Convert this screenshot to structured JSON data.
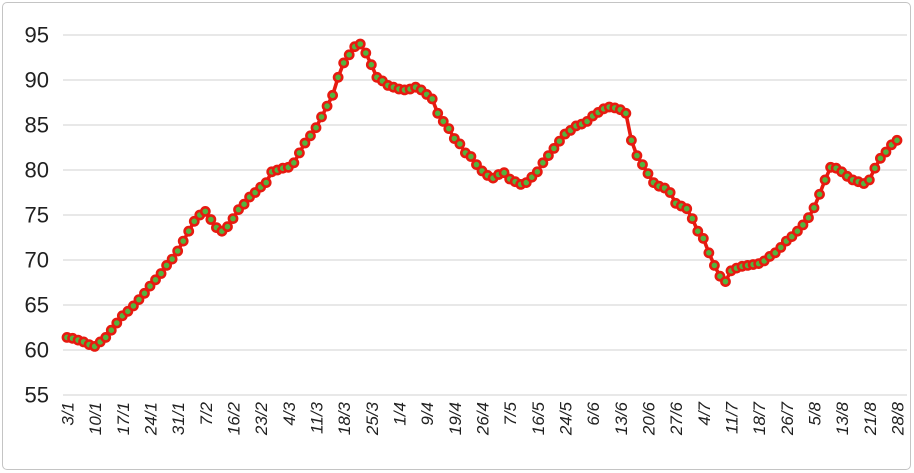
{
  "figure": {
    "background_color": "#ffffff",
    "border_color": "#c4c4c4"
  },
  "chart_data": {
    "type": "line",
    "title": "",
    "xlabel": "",
    "ylabel": "",
    "legend": "none",
    "grid": "horizontal",
    "ylim": [
      55,
      95
    ],
    "y_ticks": [
      55,
      60,
      65,
      70,
      75,
      80,
      85,
      90,
      95
    ],
    "x_tick_labels": [
      "3/1",
      "10/1",
      "17/1",
      "24/1",
      "31/1",
      "7/2",
      "16/2",
      "23/2",
      "4/3",
      "11/3",
      "18/3",
      "25/3",
      "1/4",
      "9/4",
      "19/4",
      "26/4",
      "7/5",
      "16/5",
      "24/5",
      "6/6",
      "13/6",
      "20/6",
      "27/6",
      "4/7",
      "11/7",
      "18/7",
      "26/7",
      "5/8",
      "13/8",
      "21/8",
      "28/8"
    ],
    "x_label_interval": 5,
    "values": [
      61.4,
      61.3,
      61.1,
      60.9,
      60.6,
      60.4,
      60.9,
      61.4,
      62.2,
      63.0,
      63.8,
      64.3,
      64.9,
      65.6,
      66.3,
      67.1,
      67.8,
      68.5,
      69.4,
      70.1,
      71.0,
      72.1,
      73.2,
      74.3,
      75.0,
      75.4,
      74.5,
      73.6,
      73.2,
      73.7,
      74.6,
      75.6,
      76.2,
      77.0,
      77.5,
      78.1,
      78.6,
      79.8,
      80.0,
      80.2,
      80.3,
      80.8,
      81.9,
      83.0,
      83.8,
      84.7,
      85.9,
      87.1,
      88.3,
      90.3,
      91.9,
      92.8,
      93.7,
      94.0,
      93.0,
      91.7,
      90.3,
      89.9,
      89.4,
      89.2,
      89.0,
      88.9,
      89.0,
      89.2,
      88.9,
      88.4,
      87.9,
      86.3,
      85.4,
      84.6,
      83.5,
      82.9,
      81.9,
      81.5,
      80.6,
      79.9,
      79.4,
      79.1,
      79.5,
      79.7,
      79.0,
      78.7,
      78.4,
      78.6,
      79.2,
      79.8,
      80.8,
      81.6,
      82.4,
      83.2,
      84.0,
      84.4,
      84.9,
      85.1,
      85.4,
      86.0,
      86.4,
      86.8,
      87.0,
      86.9,
      86.7,
      86.3,
      83.3,
      81.6,
      80.6,
      79.6,
      78.6,
      78.2,
      78.0,
      77.5,
      76.3,
      76.0,
      75.7,
      74.6,
      73.2,
      72.4,
      70.8,
      69.4,
      68.2,
      67.6,
      68.8,
      69.1,
      69.3,
      69.4,
      69.5,
      69.6,
      69.9,
      70.4,
      70.8,
      71.4,
      72.1,
      72.6,
      73.2,
      73.9,
      74.7,
      75.8,
      77.3,
      78.9,
      80.3,
      80.2,
      79.8,
      79.3,
      78.9,
      78.7,
      78.5,
      78.9,
      80.2,
      81.3,
      82.0,
      82.8,
      83.3
    ],
    "line_color": "#e71a10",
    "marker_fill_color": "#53b43e",
    "marker_outline_color": "#e71a10",
    "gridline_color": "#d9d9d9",
    "axis_text_color": "#212121"
  }
}
